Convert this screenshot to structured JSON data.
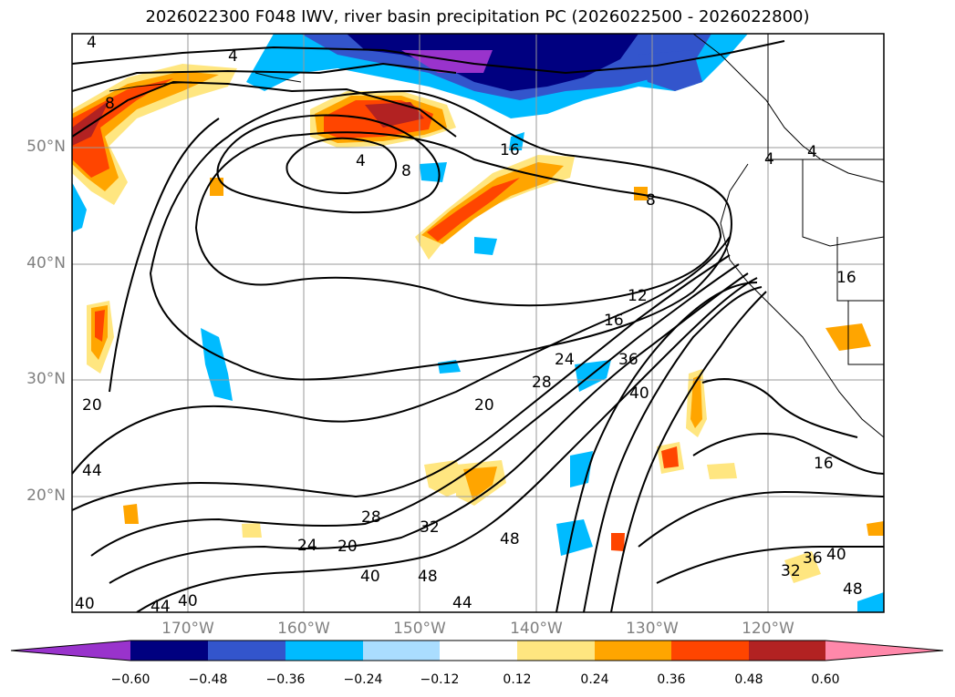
{
  "title": "2026022300 F048 IWV, river basin precipitation PC (2026022500 - 2026022800)",
  "lat_labels": [
    "50°N",
    "40°N",
    "30°N",
    "20°N"
  ],
  "lon_labels": [
    "170°W",
    "160°W",
    "150°W",
    "140°W",
    "130°W",
    "120°W"
  ],
  "colorbar": {
    "tick_labels": [
      "−0.60",
      "−0.48",
      "−0.36",
      "−0.24",
      "−0.12",
      "0.12",
      "0.24",
      "0.36",
      "0.48",
      "0.60"
    ],
    "colors": [
      "#9933cc",
      "#000080",
      "#3355cc",
      "#00bbff",
      "#aaddff",
      "#ffffff",
      "#ffe680",
      "#ffa500",
      "#ff4500",
      "#b22222",
      "#ff88aa"
    ]
  },
  "contour_labels": [
    "4",
    "4",
    "8",
    "4",
    "8",
    "16",
    "8",
    "4",
    "4",
    "16",
    "12",
    "16",
    "36",
    "40",
    "28",
    "24",
    "20",
    "20",
    "44",
    "28",
    "32",
    "48",
    "24",
    "20",
    "40",
    "48",
    "44",
    "40",
    "44",
    "48",
    "16",
    "40",
    "40",
    "32",
    "36"
  ],
  "colors": {
    "land_border": "#000000",
    "grid": "#999999",
    "contour": "#000000"
  }
}
